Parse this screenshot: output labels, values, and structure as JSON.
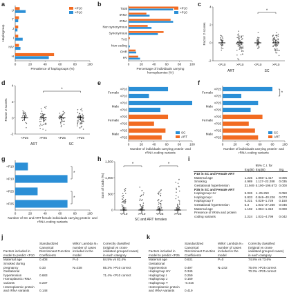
{
  "colors": {
    "orange": "#f26b21",
    "blue": "#2b8fd6",
    "grey": "#999999"
  },
  "panel_labels": [
    "a",
    "b",
    "c",
    "d",
    "e",
    "f",
    "g",
    "h",
    "i",
    "j",
    "k"
  ],
  "chart_data": [
    {
      "id": "a",
      "type": "bar",
      "orientation": "horizontal",
      "categories": [
        "U",
        "T",
        "J",
        "I",
        "H/V",
        "H"
      ],
      "ylabel": "Haplogroup",
      "xlabel": "Prevalence of haplogroups (%)",
      "xlim": [
        0,
        100
      ],
      "xticks": [
        "0",
        "20",
        "40",
        "60",
        "80",
        "100"
      ],
      "series": [
        {
          "name": "<P10",
          "color": "#f26b21",
          "values": [
            6,
            5,
            4,
            4,
            5,
            52
          ]
        },
        {
          "name": ">P10",
          "color": "#2b8fd6",
          "values": [
            14,
            4,
            3,
            10,
            7,
            45
          ]
        }
      ],
      "legend": "top-right"
    },
    {
      "id": "b",
      "type": "bar",
      "orientation": "horizontal",
      "categories": [
        "Total",
        "tRNA",
        "rRNA",
        "Non synonymous",
        "Synonymous",
        "TAS",
        "Non coding",
        "OHR",
        "HV"
      ],
      "xlabel": "Percentage of individuals carrying homoplasmies (%)",
      "xlim": [
        0,
        100
      ],
      "xticks": [
        "0",
        "20",
        "40",
        "60",
        "80",
        "100"
      ],
      "series": [
        {
          "name": "<P10",
          "color": "#f26b21",
          "values": [
            78,
            28,
            66,
            30,
            55,
            2,
            0,
            11,
            15
          ]
        },
        {
          "name": ">P10",
          "color": "#2b8fd6",
          "values": [
            70,
            33,
            70,
            36,
            46,
            0,
            2,
            12,
            18
          ]
        }
      ],
      "legend": "top-right"
    },
    {
      "id": "c",
      "type": "scatter",
      "categories": [
        "<P10",
        ">P10",
        "<P10",
        ">P10"
      ],
      "groups": [
        "ART",
        "SC"
      ],
      "ylabel": "Factor 2 scores",
      "ylim": [
        -2,
        4
      ],
      "yticks": [
        "-2",
        "0",
        "2",
        "4"
      ],
      "significance": "*"
    },
    {
      "id": "d",
      "type": "scatter",
      "categories": [
        "<P25",
        ">P25",
        "<P25",
        ">P25"
      ],
      "groups": [
        "ART",
        "SC"
      ],
      "ylabel": "Factor 2 scores",
      "ylim": [
        -2,
        4
      ],
      "yticks": [
        "-2",
        "0",
        "2",
        "4"
      ],
      "significance": "*"
    },
    {
      "id": "e",
      "type": "bar",
      "orientation": "horizontal",
      "categories": [
        ">P10",
        "<P10",
        ">P10",
        "<P10",
        ">P25",
        "<P25",
        ">P25",
        "<P25"
      ],
      "group_labels": [
        "Female",
        "Male",
        "Female",
        "Male"
      ],
      "xlabel": "Number of individuals carrying protein- and rRNA-coding variants",
      "xlim": [
        0,
        100
      ],
      "xticks": [
        "0",
        "20",
        "40",
        "60",
        "80",
        "100"
      ],
      "bar_colors": [
        "#2b8fd6",
        "#2b8fd6",
        "#2b8fd6",
        "#2b8fd6",
        "#f26b21",
        "#f26b21",
        "#f26b21",
        "#f26b21"
      ],
      "values": [
        62,
        32,
        100,
        50,
        62,
        40,
        58,
        52
      ],
      "legend_series": [
        {
          "name": "SC",
          "color": "#2b8fd6"
        },
        {
          "name": "ART",
          "color": "#f26b21"
        }
      ],
      "legend": "bottom-right"
    },
    {
      "id": "f",
      "type": "bar",
      "orientation": "horizontal",
      "categories": [
        ">P25",
        "<P25",
        ">P25",
        "<P25",
        ">P25",
        "<P25",
        ">P25",
        "<P25"
      ],
      "group_labels": [
        "Female",
        "Male",
        "Female",
        "Male"
      ],
      "xlabel": "Number of individuals carrying protein- and rRNA-coding variants",
      "xlim": [
        0,
        100
      ],
      "xticks": [
        "0",
        "20",
        "40",
        "60",
        "80",
        "100"
      ],
      "bar_colors": [
        "#2b8fd6",
        "#2b8fd6",
        "#2b8fd6",
        "#2b8fd6",
        "#f26b21",
        "#f26b21",
        "#f26b21",
        "#f26b21"
      ],
      "values": [
        80,
        30,
        57,
        45,
        64,
        42,
        52,
        57
      ],
      "legend_series": [
        {
          "name": "SC",
          "color": "#2b8fd6"
        },
        {
          "name": "ART",
          "color": "#f26b21"
        }
      ],
      "legend": "bottom-right",
      "significance": "*"
    },
    {
      "id": "g",
      "type": "bar",
      "orientation": "horizontal",
      "categories": [
        "<P10",
        ">P10",
        "<P25",
        ">P25"
      ],
      "xlabel": "Number of SC and ART female individuals carrying protein- and rRNA-coding variants",
      "xlim": [
        0,
        100
      ],
      "xticks": [
        "0",
        "20",
        "40",
        "60",
        "80",
        "100"
      ],
      "values": [
        17,
        70,
        30,
        70
      ],
      "bar_color": "#2b8fd6",
      "significance": [
        "*",
        "*"
      ]
    },
    {
      "id": "h",
      "type": "scatter",
      "categories": [
        "<P10",
        ">P10",
        "<P25",
        ">P25"
      ],
      "xlabel": "SC and ART females",
      "ylabel": "Sum of loads (%)",
      "ylim": [
        0,
        1500
      ],
      "yticks": [
        "0",
        "500",
        "1,000",
        "1,500"
      ],
      "significance": [
        "*",
        "*"
      ]
    },
    {
      "id": "i",
      "type": "table",
      "columns": [
        "",
        "Exp(B)",
        "95% C.I. for Exp(B)",
        "Sig."
      ],
      "sections": [
        {
          "title": "P10 in SC and Female ART",
          "rows": [
            [
              "Maternal age",
              "1.225",
              "1.060–1.417",
              "0.006"
            ],
            [
              "Smoking",
              "4.989",
              "1.117–22.288",
              "0.035"
            ],
            [
              "Gestational hypertension",
              "31.949",
              "5.190–196.673",
              "0.000"
            ]
          ]
        },
        {
          "title": "P25 in SC and Female ART",
          "rows": [
            [
              "Haplogroup HV",
              "5.026",
              "1–25.250",
              "0.050"
            ],
            [
              "Haplogroup I",
              "5.833",
              "0.846–40.226",
              "0.073"
            ],
            [
              "Haplogroup T",
              "0.221",
              "0.028–1.729",
              "0.150"
            ],
            [
              "Gestational hypertension",
              "5.3",
              "1.031–27.250",
              "0.046"
            ],
            [
              "Maternal age",
              "1.192",
              "1.084–1.310",
              "0.000"
            ],
            [
              "Presence of rRNA and protein coding variants",
              "2.224",
              "1.031–4.799",
              "0.042"
            ]
          ]
        }
      ]
    },
    {
      "id": "j",
      "type": "table",
      "columns": [
        "Factors included in model to predict <P10",
        "Standardized Canonical Discriminant Function Coefficients",
        "Wilks' Lambda N= number of cases included in the model",
        "Correctly classified (original vs cross-validated grouped cases) in each category"
      ],
      "rows": [
        [
          "Maternal age",
          "0.408",
          "P=0",
          "84.5% vs 82.4%"
        ],
        [
          "Smoked during pregnancy",
          "0.33",
          "N=238",
          "85.3% >P10 correct"
        ],
        [
          "Gestational hypertension",
          "0.683",
          "",
          "71.4% <P10 correct"
        ],
        [
          "Homoplasmic rRNA variants",
          "0.237",
          "",
          ""
        ],
        [
          "Heteroplasmic protein and rRNA variants",
          "0.148",
          "",
          ""
        ]
      ]
    },
    {
      "id": "k",
      "type": "table",
      "columns": [
        "Factors included in model to predict <P25",
        "Standardized Canonical Discriminant Function Coefficients",
        "Wilks' Lambda N= number of cases included in the model",
        "Correctly classified (original vs cross-validated grouped cases) in each category"
      ],
      "rows": [
        [
          "Maternal age",
          "0.631",
          "P=0",
          "74.8% vs 73.6%"
        ],
        [
          "Gestational hypertension",
          "0.497",
          "N=242",
          "75.6% >P25 correct"
        ],
        [
          "Haplogroup HV",
          "0.345",
          "",
          "70.3% <P25 correct"
        ],
        [
          "Haplogroup I",
          "0.259",
          "",
          ""
        ],
        [
          "Haplogroup J",
          "0.169",
          "",
          ""
        ],
        [
          "Haplogroup T",
          "-0.316",
          "",
          ""
        ],
        [
          "Heteroplasmic protein and rRNA variants",
          "0.419",
          "",
          ""
        ]
      ]
    }
  ]
}
